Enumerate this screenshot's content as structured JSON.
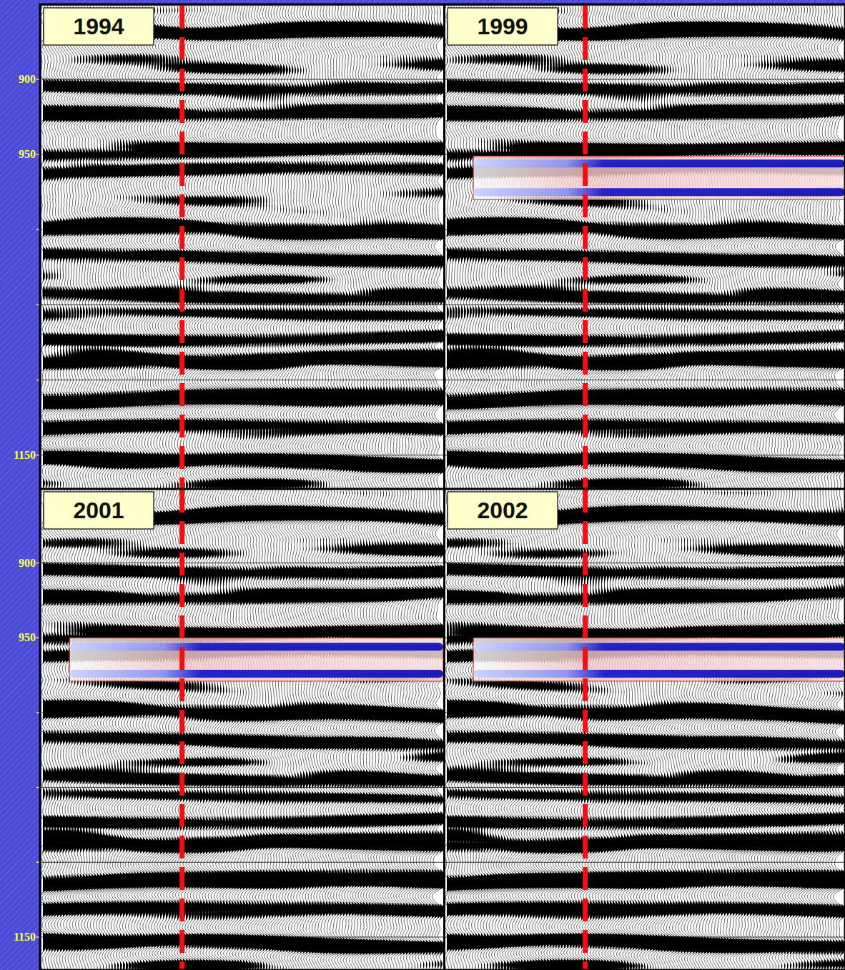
{
  "chart_data": {
    "type": "seismic",
    "panels": [
      {
        "label": "1994"
      },
      {
        "label": "1999",
        "anomaly": {
          "top": 951,
          "base": 980,
          "bands": [
            956,
            975
          ]
        }
      },
      {
        "label": "2001",
        "anomaly": {
          "top": 950,
          "base": 979,
          "bands": [
            956,
            974
          ]
        }
      },
      {
        "label": "2002",
        "anomaly": {
          "top": 950,
          "base": 979,
          "bands": [
            956,
            974
          ]
        }
      }
    ],
    "ylim": [
      851,
      1172
    ],
    "yticks": [
      900,
      950,
      1150
    ],
    "unlabeled_yticks": [
      1000,
      1050,
      1100
    ],
    "reflectors": [
      904,
      921,
      948,
      962,
      1002,
      1019,
      1043,
      1071,
      1086,
      1112,
      1133,
      1155
    ],
    "grid": true
  }
}
